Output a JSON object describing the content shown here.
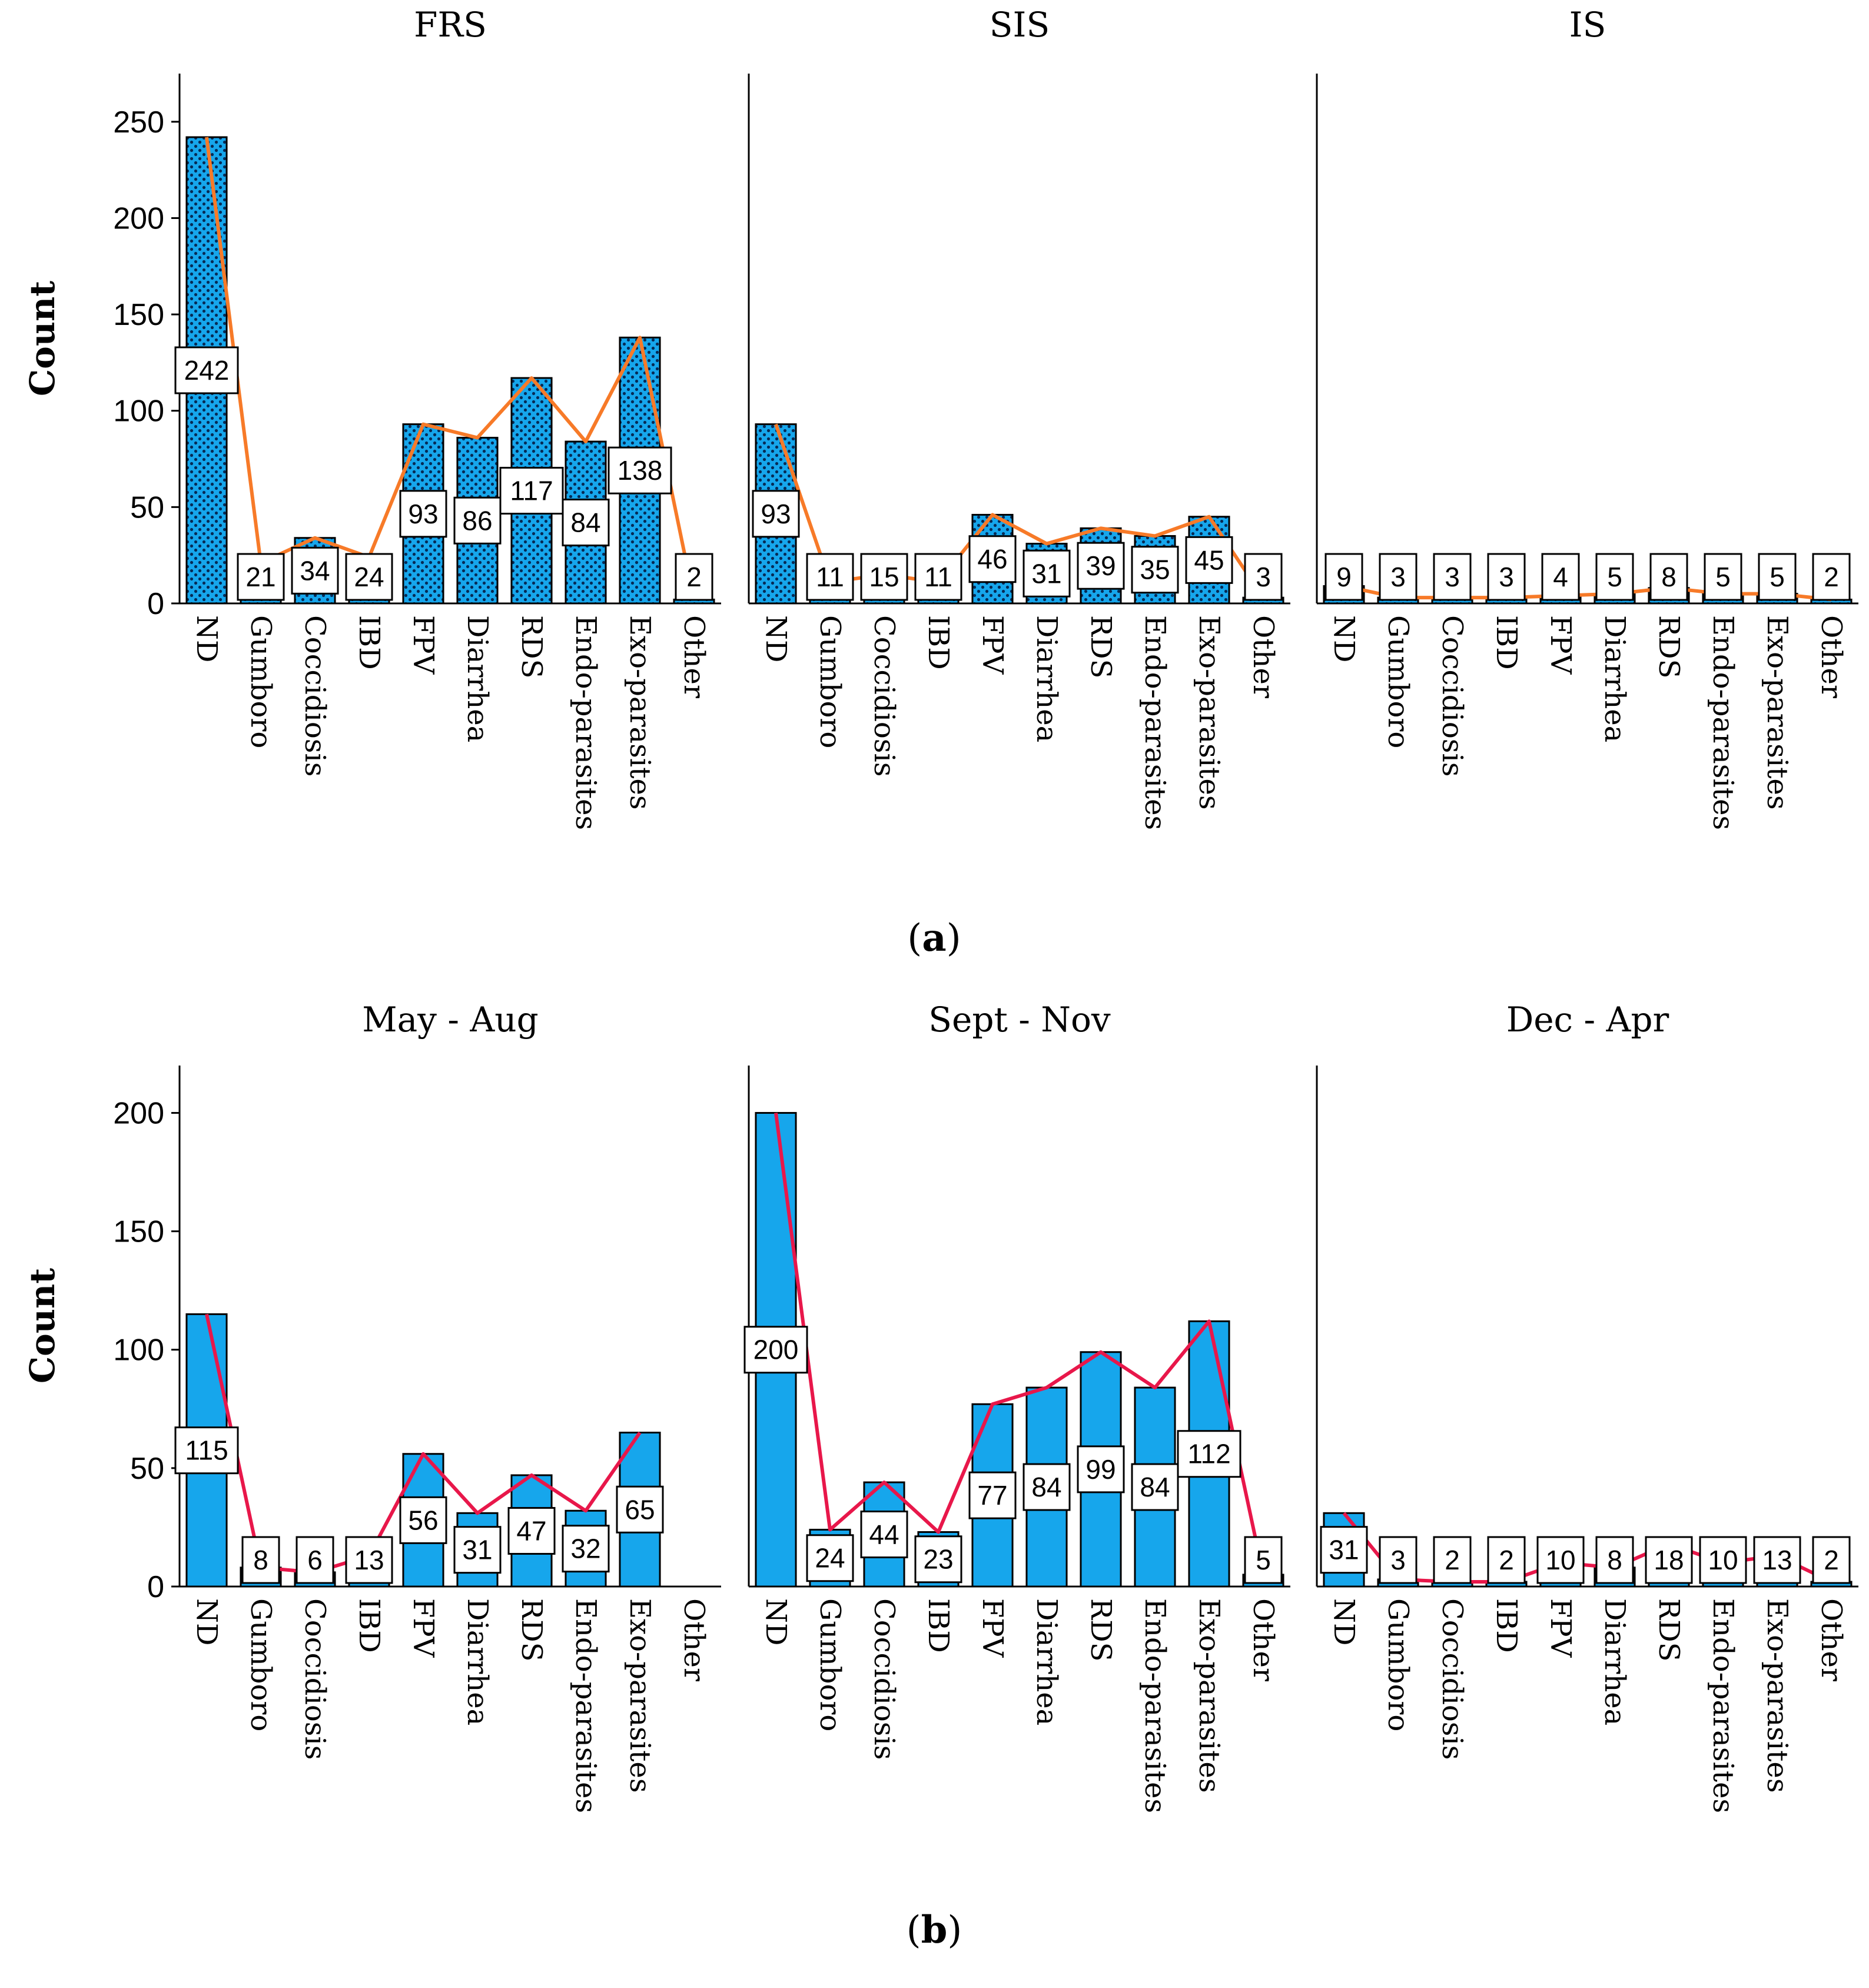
{
  "colors": {
    "bar": "#16A6EC",
    "bar_dots": "#062A55",
    "line_a": "#F77A28",
    "line_b": "#E8174A",
    "axis": "#000000",
    "label_box": "#FFFFFF"
  },
  "figures": [
    {
      "id": "a",
      "caption_open": "(",
      "caption_letter": "a",
      "caption_close": ")"
    },
    {
      "id": "b",
      "caption_open": "(",
      "caption_letter": "b",
      "caption_close": ")"
    }
  ],
  "chart_data": [
    {
      "type": "bar",
      "figure": "a",
      "title": "FRS",
      "ylabel": "Count",
      "ylim": [
        0,
        275
      ],
      "yticks": [
        0,
        50,
        100,
        150,
        200,
        250
      ],
      "bar_pattern": "dotted",
      "categories": [
        "ND",
        "Gumboro",
        "Coccidiosis",
        "IBD",
        "FPV",
        "Diarrhea",
        "RDS",
        "Endo-parasites",
        "Exo-parasites",
        "Other"
      ],
      "values": [
        242,
        21,
        34,
        24,
        93,
        86,
        117,
        84,
        138,
        2
      ],
      "labels": [
        "242",
        "21",
        "34",
        "24",
        "93",
        "86",
        "117",
        "84",
        "138",
        "2"
      ]
    },
    {
      "type": "bar",
      "figure": "a",
      "title": "SIS",
      "ylabel": "",
      "ylim": [
        0,
        275
      ],
      "bar_pattern": "dotted",
      "categories": [
        "ND",
        "Gumboro",
        "Coccidiosis",
        "IBD",
        "FPV",
        "Diarrhea",
        "RDS",
        "Endo-parasites",
        "Exo-parasites",
        "Other"
      ],
      "values": [
        93,
        11,
        15,
        11,
        46,
        31,
        39,
        35,
        45,
        3
      ],
      "labels": [
        "93",
        "11",
        "15",
        "11",
        "46",
        "31",
        "39",
        "35",
        "45",
        "3"
      ]
    },
    {
      "type": "bar",
      "figure": "a",
      "title": "IS",
      "ylabel": "",
      "ylim": [
        0,
        275
      ],
      "bar_pattern": "dotted",
      "categories": [
        "ND",
        "Gumboro",
        "Coccidiosis",
        "IBD",
        "FPV",
        "Diarrhea",
        "RDS",
        "Endo-parasites",
        "Exo-parasites",
        "Other"
      ],
      "values": [
        9,
        3,
        3,
        3,
        4,
        5,
        8,
        5,
        5,
        2
      ],
      "labels": [
        "9",
        "3",
        "3",
        "3",
        "4",
        "5",
        "8",
        "5",
        "5",
        "2"
      ]
    },
    {
      "type": "bar",
      "figure": "b",
      "title": "May - Aug",
      "ylabel": "Count",
      "ylim": [
        0,
        220
      ],
      "yticks": [
        0,
        50,
        100,
        150,
        200
      ],
      "bar_pattern": "solid",
      "categories": [
        "ND",
        "Gumboro",
        "Coccidiosis",
        "IBD",
        "FPV",
        "Diarrhea",
        "RDS",
        "Endo-parasites",
        "Exo-parasites",
        "Other"
      ],
      "values": [
        115,
        8,
        6,
        13,
        56,
        31,
        47,
        32,
        65,
        null
      ],
      "labels": [
        "115",
        "8",
        "6",
        "13",
        "56",
        "31",
        "47",
        "32",
        "65",
        ""
      ]
    },
    {
      "type": "bar",
      "figure": "b",
      "title": "Sept - Nov",
      "ylabel": "",
      "ylim": [
        0,
        220
      ],
      "bar_pattern": "solid",
      "categories": [
        "ND",
        "Gumboro",
        "Coccidiosis",
        "IBD",
        "FPV",
        "Diarrhea",
        "RDS",
        "Endo-parasites",
        "Exo-parasites",
        "Other"
      ],
      "values": [
        200,
        24,
        44,
        23,
        77,
        84,
        99,
        84,
        112,
        5
      ],
      "labels": [
        "200",
        "24",
        "44",
        "23",
        "77",
        "84",
        "99",
        "84",
        "112",
        "5"
      ]
    },
    {
      "type": "bar",
      "figure": "b",
      "title": "Dec - Apr",
      "ylabel": "",
      "ylim": [
        0,
        220
      ],
      "bar_pattern": "solid",
      "categories": [
        "ND",
        "Gumboro",
        "Coccidiosis",
        "IBD",
        "FPV",
        "Diarrhea",
        "RDS",
        "Endo-parasites",
        "Exo-parasites",
        "Other"
      ],
      "values": [
        31,
        3,
        2,
        2,
        10,
        8,
        18,
        10,
        13,
        2
      ],
      "labels": [
        "31",
        "3",
        "2",
        "2",
        "10",
        "8",
        "18",
        "10",
        "13",
        "2"
      ]
    }
  ]
}
